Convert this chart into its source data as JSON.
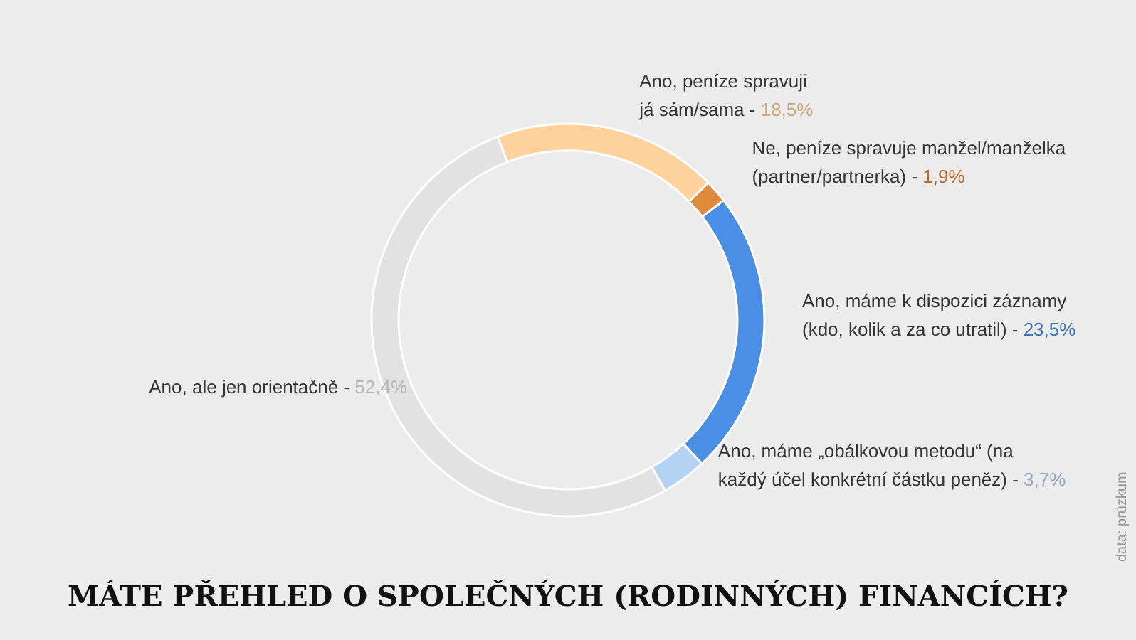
{
  "chart_data": {
    "type": "donut",
    "title": "MÁTE PŘEHLED O SPOLEČNÝCH (RODINNÝCH) FINANCÍCH?",
    "categories": [
      "Ano, peníze spravuji já sám/sama -",
      "Ne, peníze spravuje manžel/manželka (partner/partnerka) -",
      "Ano, máme k dispozici záznamy (kdo, kolik a za co utratil) -",
      "Ano, máme „obálkovou metodu“ (na každý účel konkrétní částku peněz) -",
      "Ano, ale jen orientačně -"
    ],
    "values": [
      18.5,
      1.9,
      23.5,
      3.7,
      52.4
    ],
    "value_labels": [
      "18,5%",
      "1,9%",
      "23,5%",
      "3,7%",
      "52,4%"
    ],
    "colors": [
      "#fdd29c",
      "#e08a3c",
      "#4a8ee6",
      "#b4d3f3",
      "#e2e2e2"
    ],
    "annotations": [
      "data: průzkum"
    ]
  }
}
